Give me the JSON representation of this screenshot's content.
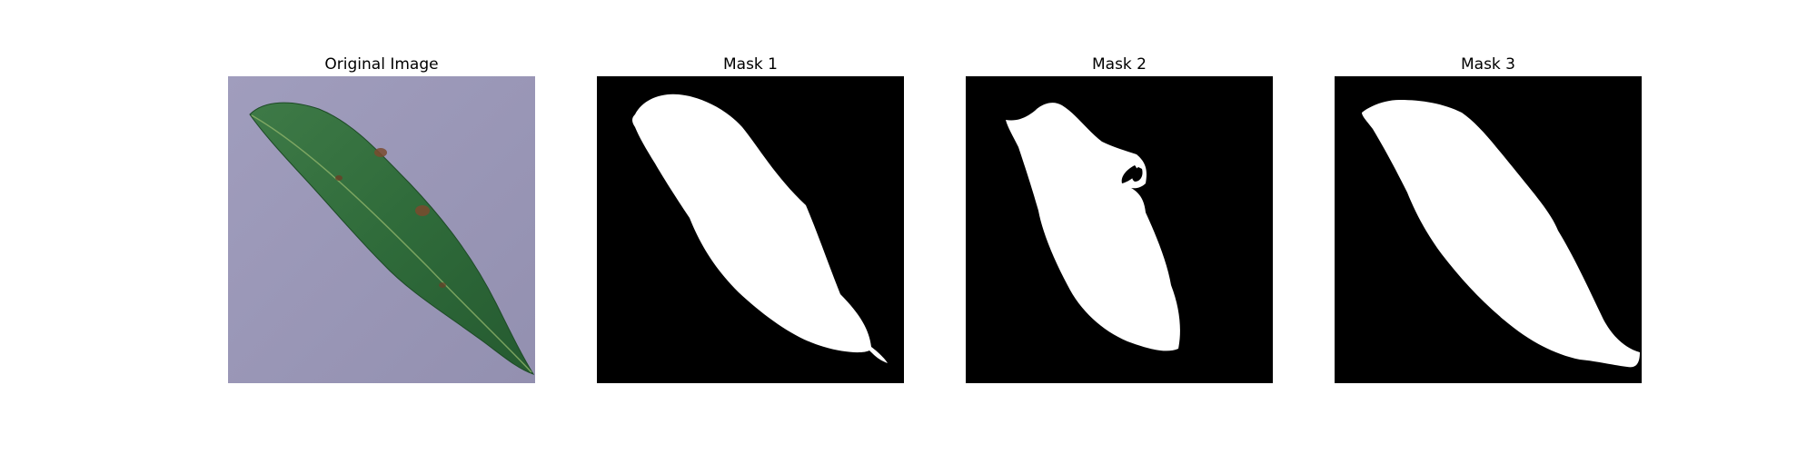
{
  "figure": {
    "panels": [
      {
        "title": "Original Image",
        "kind": "photo"
      },
      {
        "title": "Mask 1",
        "kind": "mask"
      },
      {
        "title": "Mask 2",
        "kind": "mask"
      },
      {
        "title": "Mask 3",
        "kind": "mask"
      }
    ]
  },
  "colors": {
    "background": "#ffffff",
    "photo_background": "#9b98b8",
    "leaf_green": "#2f6b3a",
    "leaf_dark": "#1d4a26",
    "leaf_spot": "#7a4a2e",
    "mask_background": "#000000",
    "mask_foreground": "#ffffff"
  }
}
